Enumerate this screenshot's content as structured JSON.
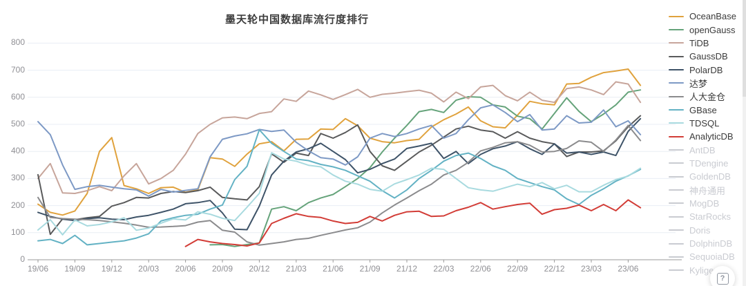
{
  "ui": {
    "title": "墨天轮中国数据库流行度排行",
    "help_button_icon": "?"
  },
  "chart_data": {
    "type": "line",
    "title": "墨天轮中国数据库流行度排行",
    "grid": true,
    "legend_position": "right",
    "ylabel": "",
    "xlabel": "",
    "ylim": [
      0,
      800
    ],
    "y_ticks": [
      0,
      100,
      200,
      300,
      400,
      500,
      600,
      700,
      800
    ],
    "x_axis_tick_labels": [
      "19/06",
      "19/09",
      "19/12",
      "20/03",
      "20/06",
      "20/09",
      "20/12",
      "21/03",
      "21/06",
      "21/09",
      "21/12",
      "22/03",
      "22/06",
      "22/09",
      "22/12",
      "23/03",
      "23/06"
    ],
    "x": [
      "19/06",
      "19/07",
      "19/08",
      "19/09",
      "19/10",
      "19/11",
      "19/12",
      "20/01",
      "20/02",
      "20/03",
      "20/04",
      "20/05",
      "20/06",
      "20/07",
      "20/08",
      "20/09",
      "20/10",
      "20/11",
      "20/12",
      "21/01",
      "21/02",
      "21/03",
      "21/04",
      "21/05",
      "21/06",
      "21/07",
      "21/08",
      "21/09",
      "21/10",
      "21/11",
      "21/12",
      "22/01",
      "22/02",
      "22/03",
      "22/04",
      "22/05",
      "22/06",
      "22/07",
      "22/08",
      "22/09",
      "22/10",
      "22/11",
      "22/12",
      "23/01",
      "23/02",
      "23/03",
      "23/04",
      "23/05",
      "23/06",
      "23/07"
    ],
    "series": [
      {
        "name": "OceanBase",
        "color": "#e0a23d",
        "active": true,
        "values": [
          205,
          175,
          165,
          180,
          245,
          400,
          451,
          274,
          262,
          245,
          266,
          268,
          249,
          258,
          377,
          372,
          345,
          390,
          428,
          436,
          402,
          445,
          446,
          483,
          481,
          521,
          495,
          449,
          436,
          432,
          440,
          445,
          490,
          517,
          538,
          564,
          513,
          491,
          487,
          534,
          585,
          576,
          572,
          649,
          651,
          674,
          691,
          697,
          704,
          644
        ]
      },
      {
        "name": "openGauss",
        "color": "#65a37a",
        "active": true,
        "values": [
          null,
          null,
          null,
          null,
          null,
          null,
          null,
          null,
          null,
          null,
          null,
          null,
          null,
          null,
          55,
          56,
          49,
          56,
          62,
          187,
          196,
          181,
          211,
          228,
          241,
          270,
          300,
          340,
          398,
          449,
          496,
          547,
          555,
          544,
          589,
          602,
          600,
          572,
          564,
          530,
          521,
          483,
          540,
          598,
          548,
          510,
          538,
          572,
          619,
          627
        ]
      },
      {
        "name": "TiDB",
        "color": "#c7a59b",
        "active": true,
        "values": [
          300,
          355,
          247,
          245,
          255,
          270,
          255,
          310,
          355,
          280,
          300,
          330,
          390,
          466,
          500,
          524,
          527,
          521,
          540,
          547,
          594,
          585,
          623,
          609,
          592,
          610,
          629,
          600,
          611,
          615,
          621,
          626,
          615,
          583,
          619,
          595,
          638,
          644,
          606,
          587,
          619,
          589,
          581,
          632,
          638,
          627,
          610,
          657,
          649,
          581
        ]
      },
      {
        "name": "GaussDB",
        "color": "#595a5b",
        "active": true,
        "values": [
          314,
          94,
          151,
          148,
          155,
          160,
          198,
          211,
          230,
          228,
          245,
          252,
          248,
          255,
          268,
          230,
          225,
          221,
          270,
          391,
          360,
          394,
          385,
          466,
          449,
          470,
          498,
          400,
          347,
          330,
          364,
          398,
          423,
          453,
          483,
          493,
          479,
          473,
          449,
          473,
          449,
          436,
          428,
          381,
          398,
          398,
          402,
          439,
          491,
          532
        ]
      },
      {
        "name": "PolarDB",
        "color": "#3e5368",
        "active": true,
        "values": [
          175,
          160,
          150,
          145,
          152,
          155,
          150,
          148,
          158,
          164,
          175,
          187,
          207,
          211,
          219,
          173,
          113,
          111,
          198,
          313,
          364,
          398,
          410,
          430,
          400,
          370,
          321,
          334,
          355,
          372,
          411,
          420,
          430,
          374,
          400,
          355,
          389,
          410,
          420,
          436,
          410,
          389,
          428,
          394,
          398,
          389,
          398,
          385,
          474,
          521
        ]
      },
      {
        "name": "达梦",
        "color": "#7d99c5",
        "active": true,
        "values": [
          510,
          462,
          350,
          260,
          270,
          275,
          268,
          262,
          258,
          235,
          260,
          250,
          256,
          262,
          380,
          445,
          457,
          465,
          481,
          474,
          479,
          434,
          402,
          377,
          372,
          350,
          380,
          449,
          466,
          455,
          466,
          483,
          496,
          449,
          466,
          517,
          561,
          572,
          544,
          510,
          536,
          479,
          483,
          532,
          505,
          508,
          553,
          491,
          513,
          462
        ]
      },
      {
        "name": "人大金仓",
        "color": "#8b8b8d",
        "active": true,
        "values": [
          230,
          156,
          152,
          150,
          148,
          145,
          140,
          135,
          128,
          120,
          121,
          123,
          126,
          139,
          145,
          109,
          102,
          66,
          54,
          60,
          66,
          75,
          79,
          90,
          100,
          110,
          118,
          139,
          173,
          202,
          228,
          255,
          279,
          313,
          330,
          360,
          402,
          415,
          432,
          436,
          423,
          398,
          400,
          411,
          439,
          434,
          400,
          442,
          496,
          440
        ]
      },
      {
        "name": "GBase",
        "color": "#63b2c4",
        "active": true,
        "values": [
          70,
          75,
          60,
          90,
          55,
          60,
          65,
          70,
          80,
          96,
          143,
          155,
          164,
          168,
          187,
          202,
          296,
          345,
          480,
          430,
          400,
          372,
          366,
          352,
          343,
          330,
          310,
          290,
          255,
          228,
          258,
          300,
          330,
          364,
          385,
          394,
          374,
          347,
          330,
          300,
          285,
          270,
          258,
          225,
          204,
          238,
          262,
          290,
          310,
          334
        ]
      },
      {
        "name": "TDSQL",
        "color": "#a8dadf",
        "active": true,
        "values": [
          110,
          148,
          92,
          147,
          125,
          130,
          140,
          155,
          109,
          117,
          135,
          151,
          147,
          177,
          168,
          153,
          145,
          194,
          245,
          395,
          372,
          364,
          349,
          343,
          313,
          290,
          279,
          260,
          253,
          280,
          296,
          313,
          338,
          334,
          300,
          266,
          258,
          253,
          266,
          279,
          270,
          285,
          262,
          275,
          251,
          251,
          275,
          296,
          309,
          338
        ]
      },
      {
        "name": "AnalyticDB",
        "color": "#d23c36",
        "active": true,
        "values": [
          null,
          null,
          null,
          null,
          null,
          null,
          null,
          null,
          null,
          null,
          null,
          null,
          49,
          75,
          66,
          60,
          56,
          51,
          62,
          134,
          153,
          170,
          160,
          156,
          143,
          134,
          138,
          160,
          143,
          164,
          177,
          179,
          160,
          162,
          181,
          194,
          211,
          187,
          196,
          204,
          209,
          168,
          185,
          190,
          202,
          181,
          204,
          181,
          221,
          192
        ]
      },
      {
        "name": "AntDB",
        "color": "#c9cbd1",
        "active": false,
        "values": []
      },
      {
        "name": "TDengine",
        "color": "#c9cbd1",
        "active": false,
        "values": []
      },
      {
        "name": "GoldenDB",
        "color": "#c9cbd1",
        "active": false,
        "values": []
      },
      {
        "name": "神舟通用",
        "color": "#c9cbd1",
        "active": false,
        "values": []
      },
      {
        "name": "MogDB",
        "color": "#c9cbd1",
        "active": false,
        "values": []
      },
      {
        "name": "StarRocks",
        "color": "#c9cbd1",
        "active": false,
        "values": []
      },
      {
        "name": "Doris",
        "color": "#c9cbd1",
        "active": false,
        "values": []
      },
      {
        "name": "DolphinDB",
        "color": "#c9cbd1",
        "active": false,
        "values": []
      },
      {
        "name": "SequoiaDB",
        "color": "#c9cbd1",
        "active": false,
        "values": []
      },
      {
        "name": "Kyligence",
        "color": "#c9cbd1",
        "active": false,
        "values": []
      }
    ],
    "style": {
      "gridline_color": "#e8edf4",
      "axis_line_color": "#999999",
      "axis_label_color": "#8f8f94",
      "active_legend_text_color": "#3a3a3a",
      "inactive_legend_text_color": "#c9cbd1"
    }
  }
}
